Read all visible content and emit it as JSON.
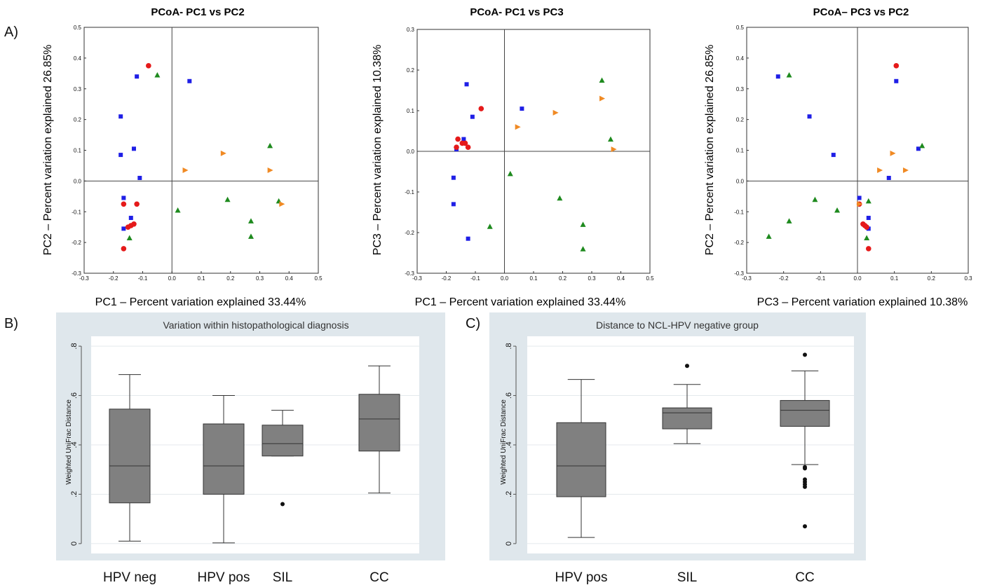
{
  "panel_labels": {
    "a": "A)",
    "b": "B)",
    "c": "C)"
  },
  "colors": {
    "blue": "#1f1fe6",
    "red": "#e51a1a",
    "green": "#1e8a1e",
    "orange": "#f08a24",
    "box_fill": "#808080",
    "panel_bg": "#dfe7ec"
  },
  "chart_data": [
    {
      "id": "pcoa1",
      "type": "scatter",
      "title": "PCoA- PC1 vs PC2",
      "xlabel": "PC1 – Percent  variation explained  33.44%",
      "ylabel": "PC2 – Percent  variation explained 26.85%",
      "xlim": [
        -0.3,
        0.5
      ],
      "ylim": [
        -0.3,
        0.5
      ],
      "xticks": [
        "-0.3",
        "-0.2",
        "-0.1",
        "0.0",
        "0.1",
        "0.2",
        "0.3",
        "0.4",
        "0.5"
      ],
      "yticks": [
        "-0.3",
        "-0.2",
        "-0.1",
        "0.0",
        "0.1",
        "0.2",
        "0.3",
        "0.4",
        "0.5"
      ],
      "series": [
        {
          "marker": "square",
          "color": "#1f1fe6",
          "points": [
            [
              -0.12,
              0.34
            ],
            [
              0.06,
              0.325
            ],
            [
              -0.175,
              0.21
            ],
            [
              -0.175,
              0.085
            ],
            [
              -0.13,
              0.105
            ],
            [
              -0.11,
              0.01
            ],
            [
              -0.165,
              -0.055
            ],
            [
              -0.14,
              -0.12
            ],
            [
              -0.165,
              -0.155
            ]
          ]
        },
        {
          "marker": "circle",
          "color": "#e51a1a",
          "points": [
            [
              -0.08,
              0.375
            ],
            [
              -0.165,
              -0.075
            ],
            [
              -0.12,
              -0.075
            ],
            [
              -0.13,
              -0.14
            ],
            [
              -0.14,
              -0.145
            ],
            [
              -0.15,
              -0.15
            ],
            [
              -0.165,
              -0.22
            ]
          ]
        },
        {
          "marker": "triangle",
          "color": "#1e8a1e",
          "points": [
            [
              -0.05,
              0.345
            ],
            [
              0.335,
              0.115
            ],
            [
              0.02,
              -0.095
            ],
            [
              0.19,
              -0.06
            ],
            [
              0.365,
              -0.065
            ],
            [
              0.27,
              -0.13
            ],
            [
              0.27,
              -0.18
            ],
            [
              -0.145,
              -0.185
            ]
          ]
        },
        {
          "marker": "tri-right",
          "color": "#f08a24",
          "points": [
            [
              0.045,
              0.035
            ],
            [
              0.175,
              0.09
            ],
            [
              0.335,
              0.035
            ],
            [
              0.375,
              -0.075
            ]
          ]
        }
      ]
    },
    {
      "id": "pcoa2",
      "type": "scatter",
      "title": "PCoA- PC1 vs PC3",
      "xlabel": "PC1 – Percent  variation explained  33.44%",
      "ylabel": "PC3 – Percent  variation explained 10.38%",
      "xlim": [
        -0.3,
        0.5
      ],
      "ylim": [
        -0.3,
        0.3
      ],
      "xticks": [
        "-0.3",
        "-0.2",
        "-0.1",
        "0.0",
        "0.1",
        "0.2",
        "0.3",
        "0.4",
        "0.5"
      ],
      "yticks": [
        "-0.3",
        "-0.2",
        "-0.1",
        "0.0",
        "0.1",
        "0.2",
        "0.3"
      ],
      "series": [
        {
          "marker": "square",
          "color": "#1f1fe6",
          "points": [
            [
              -0.13,
              0.165
            ],
            [
              0.06,
              0.105
            ],
            [
              -0.11,
              0.085
            ],
            [
              -0.14,
              0.03
            ],
            [
              -0.165,
              0.005
            ],
            [
              -0.175,
              -0.065
            ],
            [
              -0.175,
              -0.13
            ],
            [
              -0.125,
              -0.215
            ]
          ]
        },
        {
          "marker": "circle",
          "color": "#e51a1a",
          "points": [
            [
              -0.08,
              0.105
            ],
            [
              -0.16,
              0.03
            ],
            [
              -0.145,
              0.02
            ],
            [
              -0.135,
              0.02
            ],
            [
              -0.125,
              0.01
            ],
            [
              -0.165,
              0.01
            ]
          ]
        },
        {
          "marker": "triangle",
          "color": "#1e8a1e",
          "points": [
            [
              0.335,
              0.175
            ],
            [
              0.365,
              0.03
            ],
            [
              0.02,
              -0.055
            ],
            [
              0.19,
              -0.115
            ],
            [
              0.27,
              -0.18
            ],
            [
              0.27,
              -0.24
            ],
            [
              -0.05,
              -0.185
            ]
          ]
        },
        {
          "marker": "tri-right",
          "color": "#f08a24",
          "points": [
            [
              0.335,
              0.13
            ],
            [
              0.175,
              0.095
            ],
            [
              0.045,
              0.06
            ],
            [
              0.375,
              0.005
            ]
          ]
        }
      ]
    },
    {
      "id": "pcoa3",
      "type": "scatter",
      "title": "PCoA– PC3 vs PC2",
      "xlabel": "PC3 – Percent  variation explained 10.38%",
      "ylabel": "PC2 – Percent  variation explained 26.85%",
      "xlim": [
        -0.3,
        0.3
      ],
      "ylim": [
        -0.3,
        0.5
      ],
      "xticks": [
        "-0.3",
        "-0.2",
        "-0.1",
        "0.0",
        "0.1",
        "0.2",
        "0.3"
      ],
      "yticks": [
        "-0.3",
        "-0.2",
        "-0.1",
        "0.0",
        "0.1",
        "0.2",
        "0.3",
        "0.4",
        "0.5"
      ],
      "series": [
        {
          "marker": "square",
          "color": "#1f1fe6",
          "points": [
            [
              -0.215,
              0.34
            ],
            [
              0.105,
              0.325
            ],
            [
              -0.13,
              0.21
            ],
            [
              -0.065,
              0.085
            ],
            [
              0.165,
              0.105
            ],
            [
              0.085,
              0.01
            ],
            [
              0.005,
              -0.055
            ],
            [
              0.03,
              -0.12
            ],
            [
              0.03,
              -0.155
            ]
          ]
        },
        {
          "marker": "circle",
          "color": "#e51a1a",
          "points": [
            [
              0.105,
              0.375
            ],
            [
              0.005,
              -0.075
            ],
            [
              0.015,
              -0.14
            ],
            [
              0.02,
              -0.145
            ],
            [
              0.025,
              -0.15
            ],
            [
              0.03,
              -0.22
            ]
          ]
        },
        {
          "marker": "triangle",
          "color": "#1e8a1e",
          "points": [
            [
              -0.185,
              0.345
            ],
            [
              0.175,
              0.115
            ],
            [
              -0.115,
              -0.06
            ],
            [
              -0.055,
              -0.095
            ],
            [
              0.03,
              -0.065
            ],
            [
              -0.185,
              -0.13
            ],
            [
              -0.24,
              -0.18
            ],
            [
              0.025,
              -0.185
            ]
          ]
        },
        {
          "marker": "tri-right",
          "color": "#f08a24",
          "points": [
            [
              0.095,
              0.09
            ],
            [
              0.06,
              0.035
            ],
            [
              0.13,
              0.035
            ],
            [
              0.005,
              -0.075
            ]
          ]
        }
      ]
    },
    {
      "id": "box1",
      "type": "box",
      "title": "Variation within histopathological diagnosis",
      "ylabel": "Weighted UniFrac Distance",
      "ylim": [
        -0.04,
        0.84
      ],
      "yticks": [
        0,
        0.2,
        0.4,
        0.6,
        0.8
      ],
      "ytick_labels": [
        "0",
        ".2",
        ".4",
        ".6",
        ".8"
      ],
      "categories": [
        "HPV neg",
        "HPV pos",
        "SIL",
        "CC"
      ],
      "boxes": [
        {
          "min": 0.01,
          "q1": 0.165,
          "median": 0.315,
          "q3": 0.545,
          "max": 0.685,
          "outliers": []
        },
        {
          "min": 0.003,
          "q1": 0.2,
          "median": 0.315,
          "q3": 0.485,
          "max": 0.6,
          "outliers": []
        },
        {
          "min": 0.355,
          "q1": 0.355,
          "median": 0.405,
          "q3": 0.48,
          "max": 0.54,
          "outliers": [
            0.16
          ]
        },
        {
          "min": 0.205,
          "q1": 0.375,
          "median": 0.505,
          "q3": 0.605,
          "max": 0.72,
          "outliers": []
        }
      ]
    },
    {
      "id": "box2",
      "type": "box",
      "title": "Distance to NCL-HPV negative group",
      "ylabel": "Weighted UniFrac Distance",
      "ylim": [
        -0.04,
        0.84
      ],
      "yticks": [
        0,
        0.2,
        0.4,
        0.6,
        0.8
      ],
      "ytick_labels": [
        "0",
        ".2",
        ".4",
        ".6",
        ".8"
      ],
      "categories": [
        "HPV pos",
        "SIL",
        "CC"
      ],
      "boxes": [
        {
          "min": 0.025,
          "q1": 0.19,
          "median": 0.315,
          "q3": 0.49,
          "max": 0.665,
          "outliers": []
        },
        {
          "min": 0.405,
          "q1": 0.465,
          "median": 0.53,
          "q3": 0.55,
          "max": 0.645,
          "outliers": [
            0.72
          ]
        },
        {
          "min": 0.32,
          "q1": 0.475,
          "median": 0.54,
          "q3": 0.58,
          "max": 0.7,
          "outliers": [
            0.765,
            0.31,
            0.305,
            0.26,
            0.25,
            0.24,
            0.23,
            0.07
          ]
        }
      ]
    }
  ]
}
